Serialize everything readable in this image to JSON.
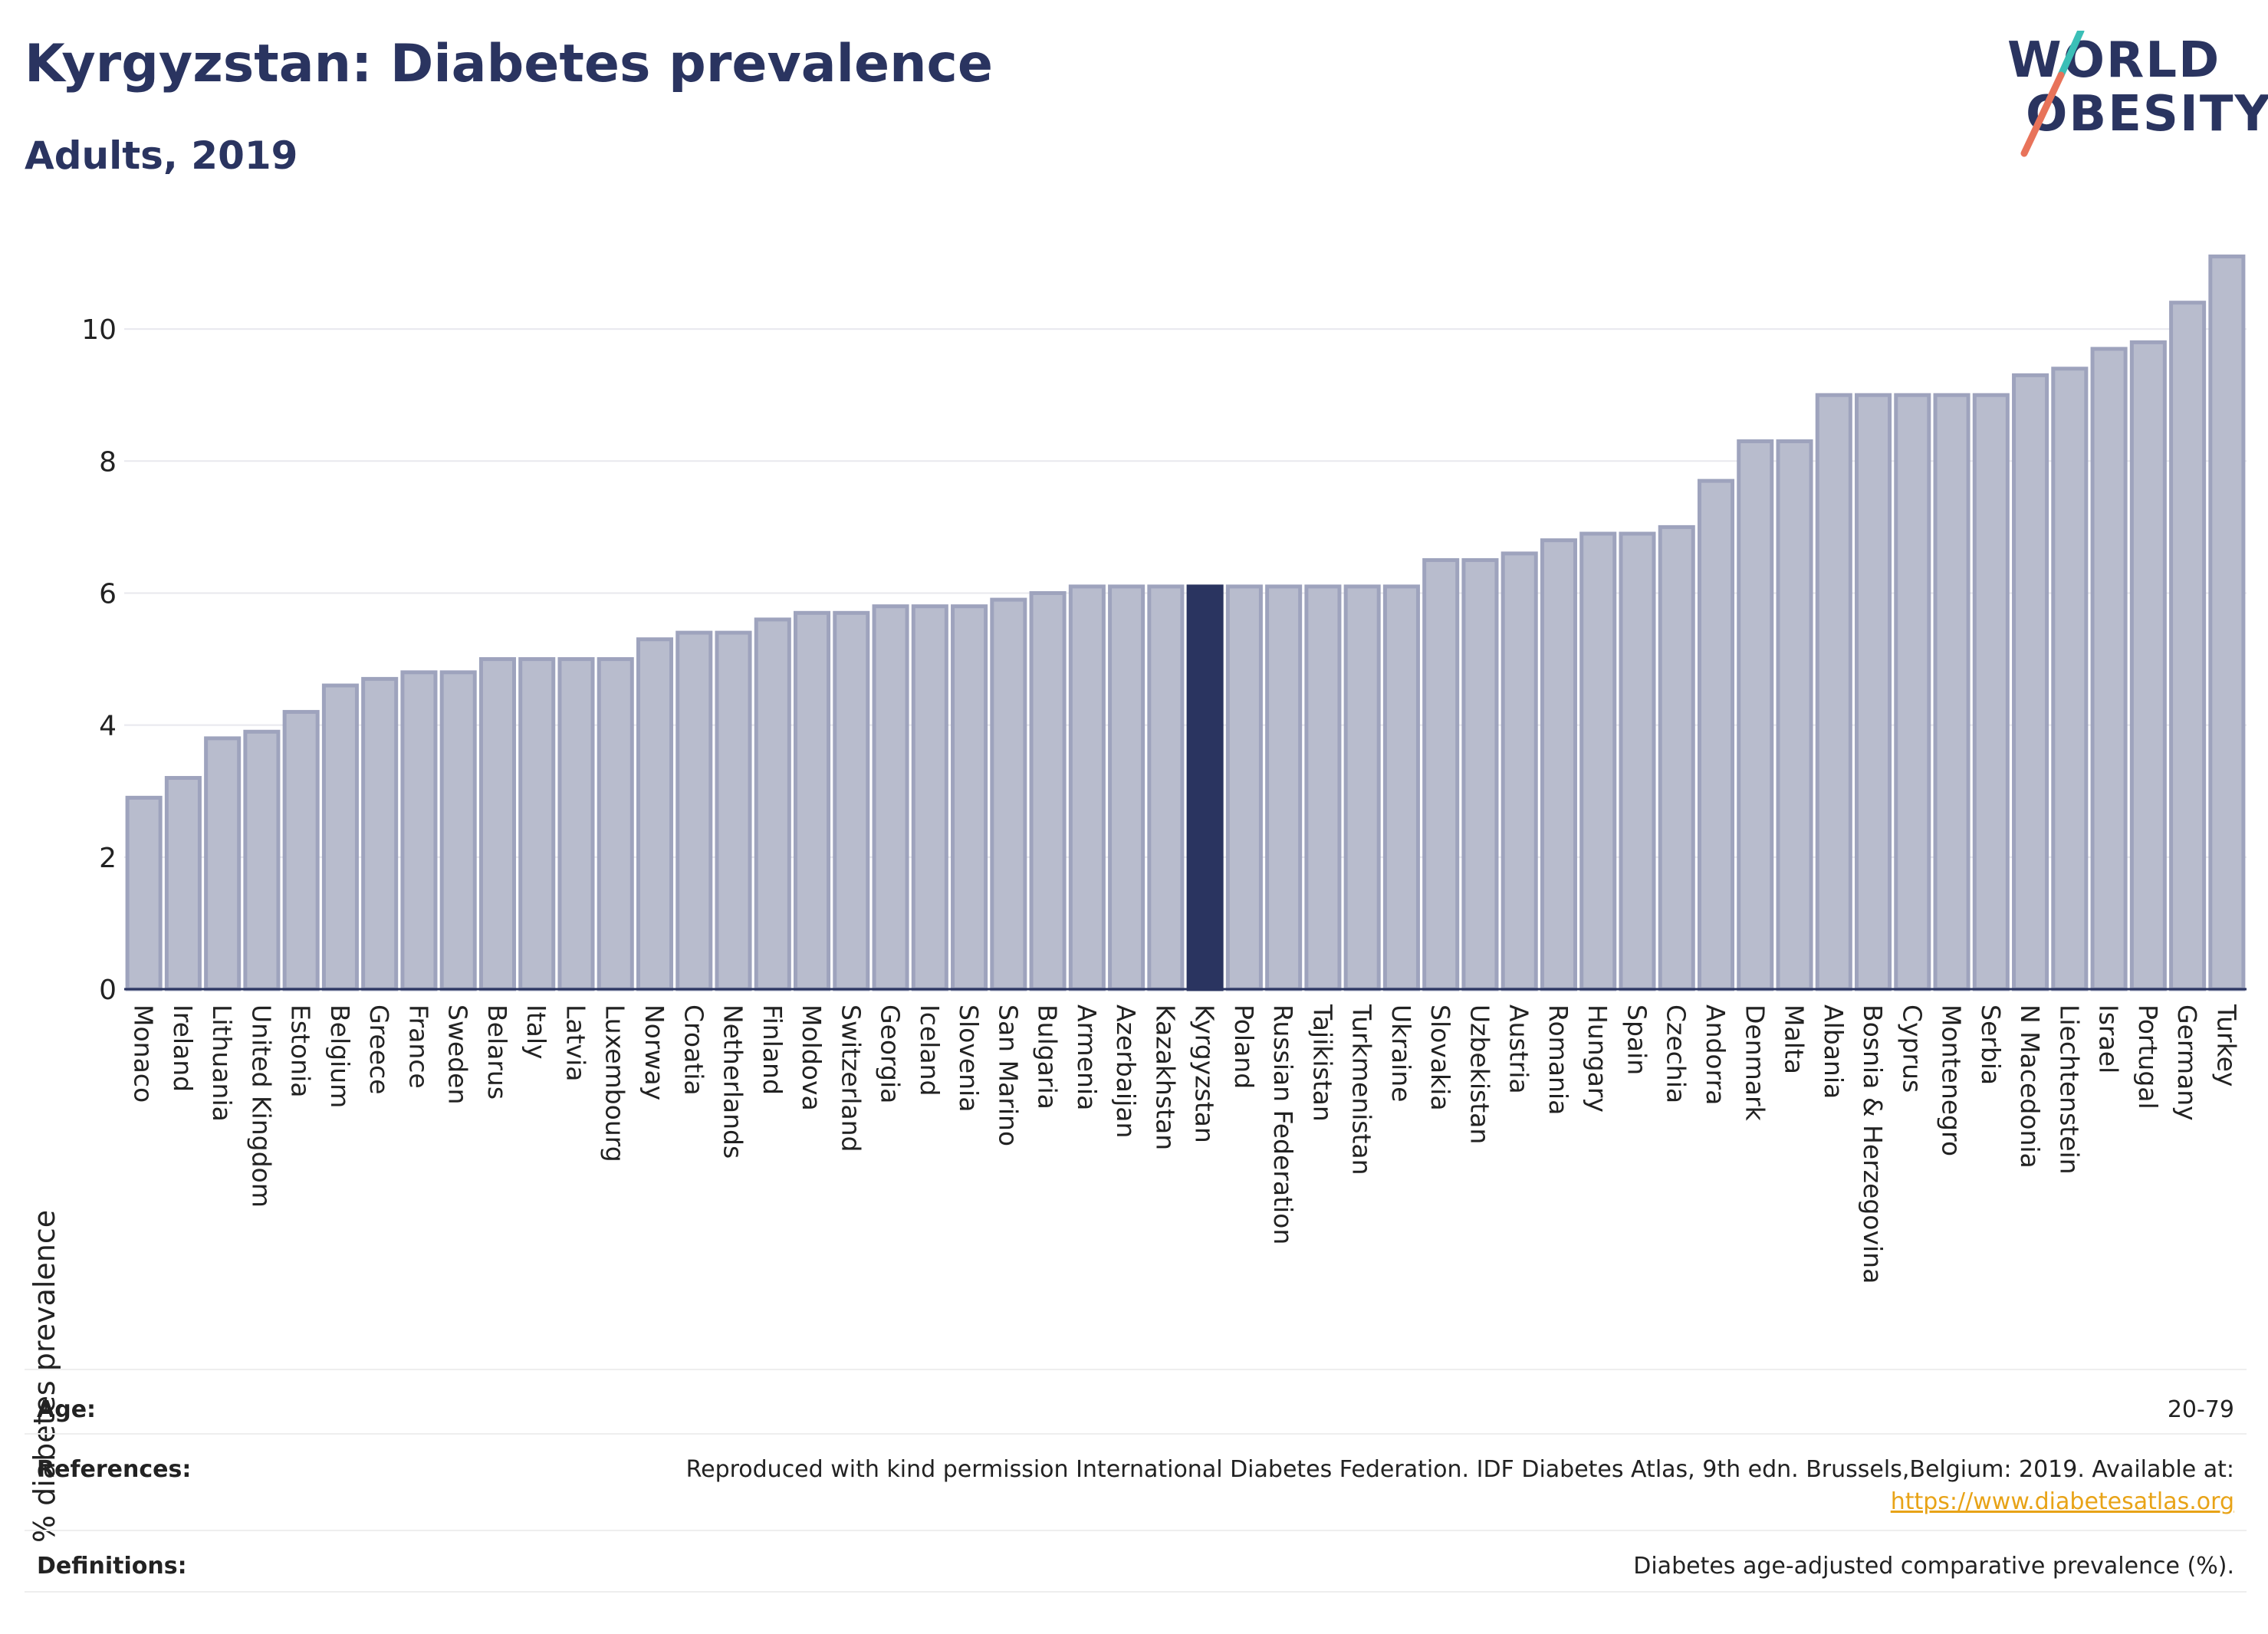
{
  "header": {
    "title": "Kyrgyzstan: Diabetes prevalence",
    "subtitle": "Adults, 2019"
  },
  "logo": {
    "line1": "WORLD",
    "line2": "OBESITY",
    "slash_colors": [
      "#3bbfb7",
      "#e8735a"
    ]
  },
  "colors": {
    "bar": "#b8bccd",
    "bar_stroke": "#9ea3bd",
    "highlight": "#2a3460",
    "grid": "#e8e8ee",
    "axis": "#2a3460",
    "text": "#222222"
  },
  "chart_data": {
    "type": "bar",
    "title": "Kyrgyzstan: Diabetes prevalence",
    "subtitle": "Adults, 2019",
    "xlabel": "",
    "ylabel": "% diabetes prevalence",
    "ylim": [
      0,
      11.5
    ],
    "yticks": [
      0,
      2,
      4,
      6,
      8,
      10
    ],
    "grid": true,
    "highlight": "Kyrgyzstan",
    "categories": [
      "Monaco",
      "Ireland",
      "Lithuania",
      "United Kingdom",
      "Estonia",
      "Belgium",
      "Greece",
      "France",
      "Sweden",
      "Belarus",
      "Italy",
      "Latvia",
      "Luxembourg",
      "Norway",
      "Croatia",
      "Netherlands",
      "Finland",
      "Moldova",
      "Switzerland",
      "Georgia",
      "Iceland",
      "Slovenia",
      "San Marino",
      "Bulgaria",
      "Armenia",
      "Azerbaijan",
      "Kazakhstan",
      "Kyrgyzstan",
      "Poland",
      "Russian Federation",
      "Tajikistan",
      "Turkmenistan",
      "Ukraine",
      "Slovakia",
      "Uzbekistan",
      "Austria",
      "Romania",
      "Hungary",
      "Spain",
      "Czechia",
      "Andorra",
      "Denmark",
      "Malta",
      "Albania",
      "Bosnia & Herzegovina",
      "Cyprus",
      "Montenegro",
      "Serbia",
      "N Macedonia",
      "Liechtenstein",
      "Israel",
      "Portugal",
      "Germany",
      "Turkey"
    ],
    "values": [
      2.9,
      3.2,
      3.8,
      3.9,
      4.2,
      4.6,
      4.7,
      4.8,
      4.8,
      5.0,
      5.0,
      5.0,
      5.0,
      5.3,
      5.4,
      5.4,
      5.6,
      5.7,
      5.7,
      5.8,
      5.8,
      5.8,
      5.9,
      6.0,
      6.1,
      6.1,
      6.1,
      6.1,
      6.1,
      6.1,
      6.1,
      6.1,
      6.1,
      6.5,
      6.5,
      6.6,
      6.8,
      6.9,
      6.9,
      7.0,
      7.7,
      8.3,
      8.3,
      9.0,
      9.0,
      9.0,
      9.0,
      9.0,
      9.3,
      9.4,
      9.7,
      9.8,
      10.4,
      11.1
    ]
  },
  "info_table": {
    "rows": [
      {
        "label": "Age:",
        "value": "20-79"
      },
      {
        "label": "References:",
        "value": "Reproduced with kind permission International Diabetes Federation. IDF Diabetes Atlas, 9th edn. Brussels,Belgium: 2019. Available at:",
        "link": "https://www.diabetesatlas.org"
      },
      {
        "label": "Definitions:",
        "value": "Diabetes age-adjusted comparative prevalence (%)."
      }
    ]
  }
}
